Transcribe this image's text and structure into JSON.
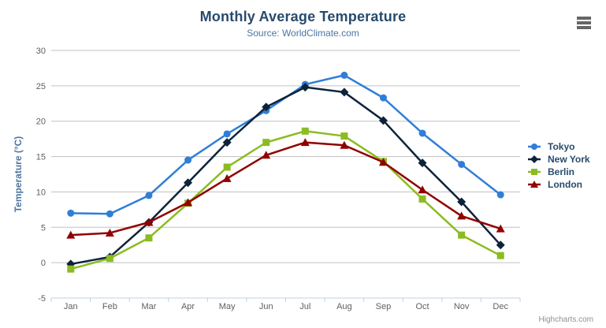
{
  "chart": {
    "context_menu_icon": "hamburger-icon"
  },
  "chart_data": {
    "type": "line",
    "title": "Monthly Average Temperature",
    "subtitle": "Source: WorldClimate.com",
    "xlabel": "",
    "ylabel": "Temperature (°C)",
    "categories": [
      "Jan",
      "Feb",
      "Mar",
      "Apr",
      "May",
      "Jun",
      "Jul",
      "Aug",
      "Sep",
      "Oct",
      "Nov",
      "Dec"
    ],
    "yticks": [
      30,
      25,
      20,
      15,
      10,
      5,
      0,
      -5
    ],
    "ylim": [
      -5,
      30
    ],
    "grid": true,
    "legend_position": "right",
    "series": [
      {
        "name": "Tokyo",
        "color": "#2f7ed8",
        "marker": "circle",
        "values": [
          7.0,
          6.9,
          9.5,
          14.5,
          18.2,
          21.5,
          25.2,
          26.5,
          23.3,
          18.3,
          13.9,
          9.6
        ]
      },
      {
        "name": "New York",
        "color": "#0d233a",
        "marker": "diamond",
        "values": [
          -0.2,
          0.8,
          5.7,
          11.3,
          17.0,
          22.0,
          24.8,
          24.1,
          20.1,
          14.1,
          8.6,
          2.5
        ]
      },
      {
        "name": "Berlin",
        "color": "#8bbc21",
        "marker": "square",
        "values": [
          -0.9,
          0.6,
          3.5,
          8.4,
          13.5,
          17.0,
          18.6,
          17.9,
          14.3,
          9.0,
          3.9,
          1.0
        ]
      },
      {
        "name": "London",
        "color": "#910000",
        "marker": "triangle",
        "values": [
          3.9,
          4.2,
          5.7,
          8.5,
          11.9,
          15.2,
          17.0,
          16.6,
          14.2,
          10.3,
          6.6,
          4.8
        ]
      }
    ]
  },
  "colors": {
    "title": "#274b6d",
    "subtitle": "#4d759e",
    "axis_title": "#4d759e",
    "tick_label": "#606060",
    "grid_line": "#C0C0C0",
    "axis_line": "#C0D0E0",
    "legend_text": "#274b6d",
    "credits": "#909090",
    "menu_icon": "#666666"
  },
  "credits": {
    "label": "Highcharts.com"
  }
}
